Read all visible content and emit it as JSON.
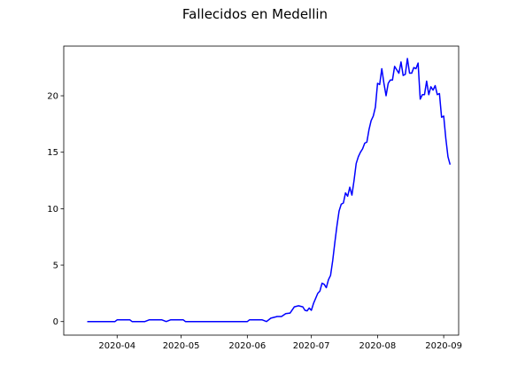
{
  "chart_data": {
    "type": "line",
    "title": "Fallecidos en Medellin",
    "xlabel": "",
    "ylabel": "",
    "x_ticks": [
      "2020-04",
      "2020-05",
      "2020-06",
      "2020-07",
      "2020-08",
      "2020-09"
    ],
    "y_ticks": [
      0,
      5,
      10,
      15,
      20
    ],
    "xlim": [
      "2020-03-07",
      "2020-09-08"
    ],
    "ylim": [
      -1.2,
      24.4
    ],
    "grid": false,
    "series": [
      {
        "color": "#0000ff",
        "points": [
          [
            "2020-03-18",
            0
          ],
          [
            "2020-03-25",
            0
          ],
          [
            "2020-03-31",
            0
          ],
          [
            "2020-04-01",
            0.15
          ],
          [
            "2020-04-07",
            0.15
          ],
          [
            "2020-04-08",
            0
          ],
          [
            "2020-04-14",
            0
          ],
          [
            "2020-04-16",
            0.15
          ],
          [
            "2020-04-22",
            0.15
          ],
          [
            "2020-04-24",
            0
          ],
          [
            "2020-04-26",
            0.15
          ],
          [
            "2020-05-02",
            0.15
          ],
          [
            "2020-05-03",
            0
          ],
          [
            "2020-05-15",
            0
          ],
          [
            "2020-06-01",
            0
          ],
          [
            "2020-06-02",
            0.15
          ],
          [
            "2020-06-08",
            0.15
          ],
          [
            "2020-06-10",
            0
          ],
          [
            "2020-06-12",
            0.3
          ],
          [
            "2020-06-15",
            0.45
          ],
          [
            "2020-06-17",
            0.45
          ],
          [
            "2020-06-19",
            0.7
          ],
          [
            "2020-06-21",
            0.75
          ],
          [
            "2020-06-23",
            1.3
          ],
          [
            "2020-06-25",
            1.4
          ],
          [
            "2020-06-27",
            1.3
          ],
          [
            "2020-06-28",
            1.0
          ],
          [
            "2020-06-29",
            0.95
          ],
          [
            "2020-06-30",
            1.2
          ],
          [
            "2020-07-01",
            1.0
          ],
          [
            "2020-07-02",
            1.6
          ],
          [
            "2020-07-04",
            2.5
          ],
          [
            "2020-07-05",
            2.7
          ],
          [
            "2020-07-06",
            3.4
          ],
          [
            "2020-07-07",
            3.3
          ],
          [
            "2020-07-08",
            3.0
          ],
          [
            "2020-07-09",
            3.7
          ],
          [
            "2020-07-10",
            4.1
          ],
          [
            "2020-07-11",
            5.4
          ],
          [
            "2020-07-12",
            7.0
          ],
          [
            "2020-07-13",
            8.5
          ],
          [
            "2020-07-14",
            9.8
          ],
          [
            "2020-07-15",
            10.4
          ],
          [
            "2020-07-16",
            10.5
          ],
          [
            "2020-07-17",
            11.4
          ],
          [
            "2020-07-18",
            11.1
          ],
          [
            "2020-07-19",
            11.9
          ],
          [
            "2020-07-20",
            11.2
          ],
          [
            "2020-07-21",
            12.5
          ],
          [
            "2020-07-22",
            14.0
          ],
          [
            "2020-07-23",
            14.6
          ],
          [
            "2020-07-24",
            15.0
          ],
          [
            "2020-07-25",
            15.3
          ],
          [
            "2020-07-26",
            15.8
          ],
          [
            "2020-07-27",
            15.9
          ],
          [
            "2020-07-28",
            17.0
          ],
          [
            "2020-07-29",
            17.8
          ],
          [
            "2020-07-30",
            18.2
          ],
          [
            "2020-07-31",
            19.0
          ],
          [
            "2020-08-01",
            21.1
          ],
          [
            "2020-08-02",
            21.0
          ],
          [
            "2020-08-03",
            22.4
          ],
          [
            "2020-08-04",
            21.1
          ],
          [
            "2020-08-05",
            20.0
          ],
          [
            "2020-08-06",
            21.1
          ],
          [
            "2020-08-07",
            21.4
          ],
          [
            "2020-08-08",
            21.4
          ],
          [
            "2020-08-09",
            22.6
          ],
          [
            "2020-08-10",
            22.3
          ],
          [
            "2020-08-11",
            22.0
          ],
          [
            "2020-08-12",
            23.0
          ],
          [
            "2020-08-13",
            21.8
          ],
          [
            "2020-08-14",
            21.9
          ],
          [
            "2020-08-15",
            23.3
          ],
          [
            "2020-08-16",
            22.0
          ],
          [
            "2020-08-17",
            22.0
          ],
          [
            "2020-08-18",
            22.5
          ],
          [
            "2020-08-19",
            22.4
          ],
          [
            "2020-08-20",
            22.9
          ],
          [
            "2020-08-21",
            19.7
          ],
          [
            "2020-08-22",
            20.1
          ],
          [
            "2020-08-23",
            20.1
          ],
          [
            "2020-08-24",
            21.3
          ],
          [
            "2020-08-25",
            20.1
          ],
          [
            "2020-08-26",
            20.8
          ],
          [
            "2020-08-27",
            20.5
          ],
          [
            "2020-08-28",
            20.9
          ],
          [
            "2020-08-29",
            20.1
          ],
          [
            "2020-08-30",
            20.2
          ],
          [
            "2020-08-31",
            18.1
          ],
          [
            "2020-09-01",
            18.2
          ],
          [
            "2020-09-02",
            16.2
          ],
          [
            "2020-09-03",
            14.6
          ],
          [
            "2020-09-04",
            13.9
          ]
        ]
      }
    ]
  }
}
